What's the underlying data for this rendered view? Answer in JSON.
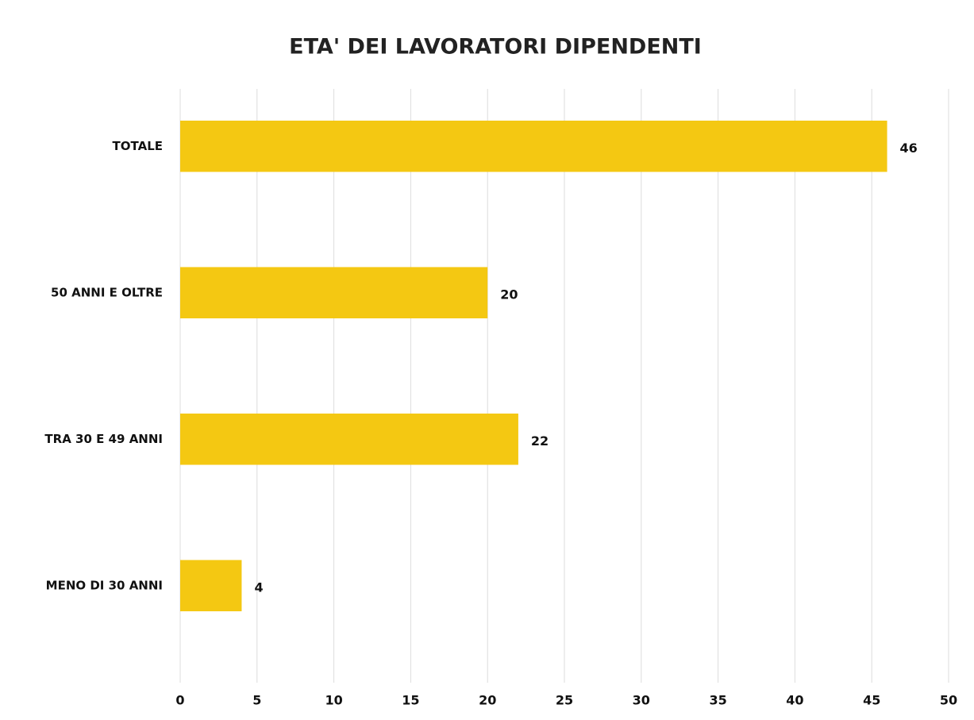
{
  "chart_data": {
    "type": "barh",
    "title": "ETA' DEI LAVORATORI DIPENDENTI",
    "categories": [
      "TOTALE",
      "50 ANNI E OLTRE",
      "TRA 30 E 49 ANNI",
      "MENO DI 30 ANNI"
    ],
    "values": [
      46,
      20,
      22,
      4
    ],
    "color": "#f4c812",
    "xlim": [
      0,
      50
    ],
    "xticks": [
      0,
      5,
      10,
      15,
      20,
      25,
      30,
      35,
      40,
      45,
      50
    ],
    "grid": true
  }
}
